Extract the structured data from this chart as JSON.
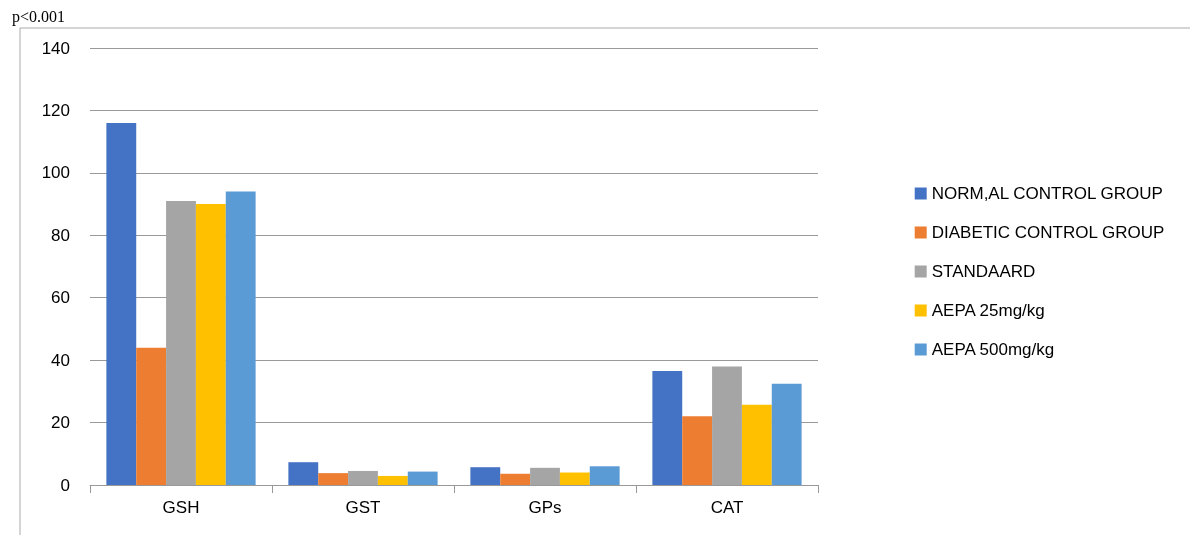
{
  "chart_data": {
    "type": "bar",
    "categories": [
      "GSH",
      "GST",
      "GPs",
      "CAT"
    ],
    "series": [
      {
        "name": "NORM,AL CONTROL GROUP",
        "color": "#4472c4",
        "values": [
          116,
          7.3,
          5.7,
          36.5
        ]
      },
      {
        "name": "DIABETIC CONTROL GROUP",
        "color": "#ed7d31",
        "values": [
          44,
          3.8,
          3.6,
          22
        ]
      },
      {
        "name": "STANDAARD",
        "color": "#a5a5a5",
        "values": [
          91,
          4.5,
          5.5,
          38
        ]
      },
      {
        "name": "AEPA 25mg/kg",
        "color": "#ffc000",
        "values": [
          90,
          2.9,
          4.0,
          25.7
        ]
      },
      {
        "name": "AEPA 500mg/kg",
        "color": "#5b9bd5",
        "values": [
          94,
          4.3,
          6.0,
          32.4
        ]
      }
    ],
    "ylim": [
      0,
      140
    ],
    "yticks": [
      0,
      20,
      40,
      60,
      80,
      100,
      120,
      140
    ],
    "grid": "y",
    "legend": "right",
    "annotations": [
      "p<0.001"
    ]
  }
}
